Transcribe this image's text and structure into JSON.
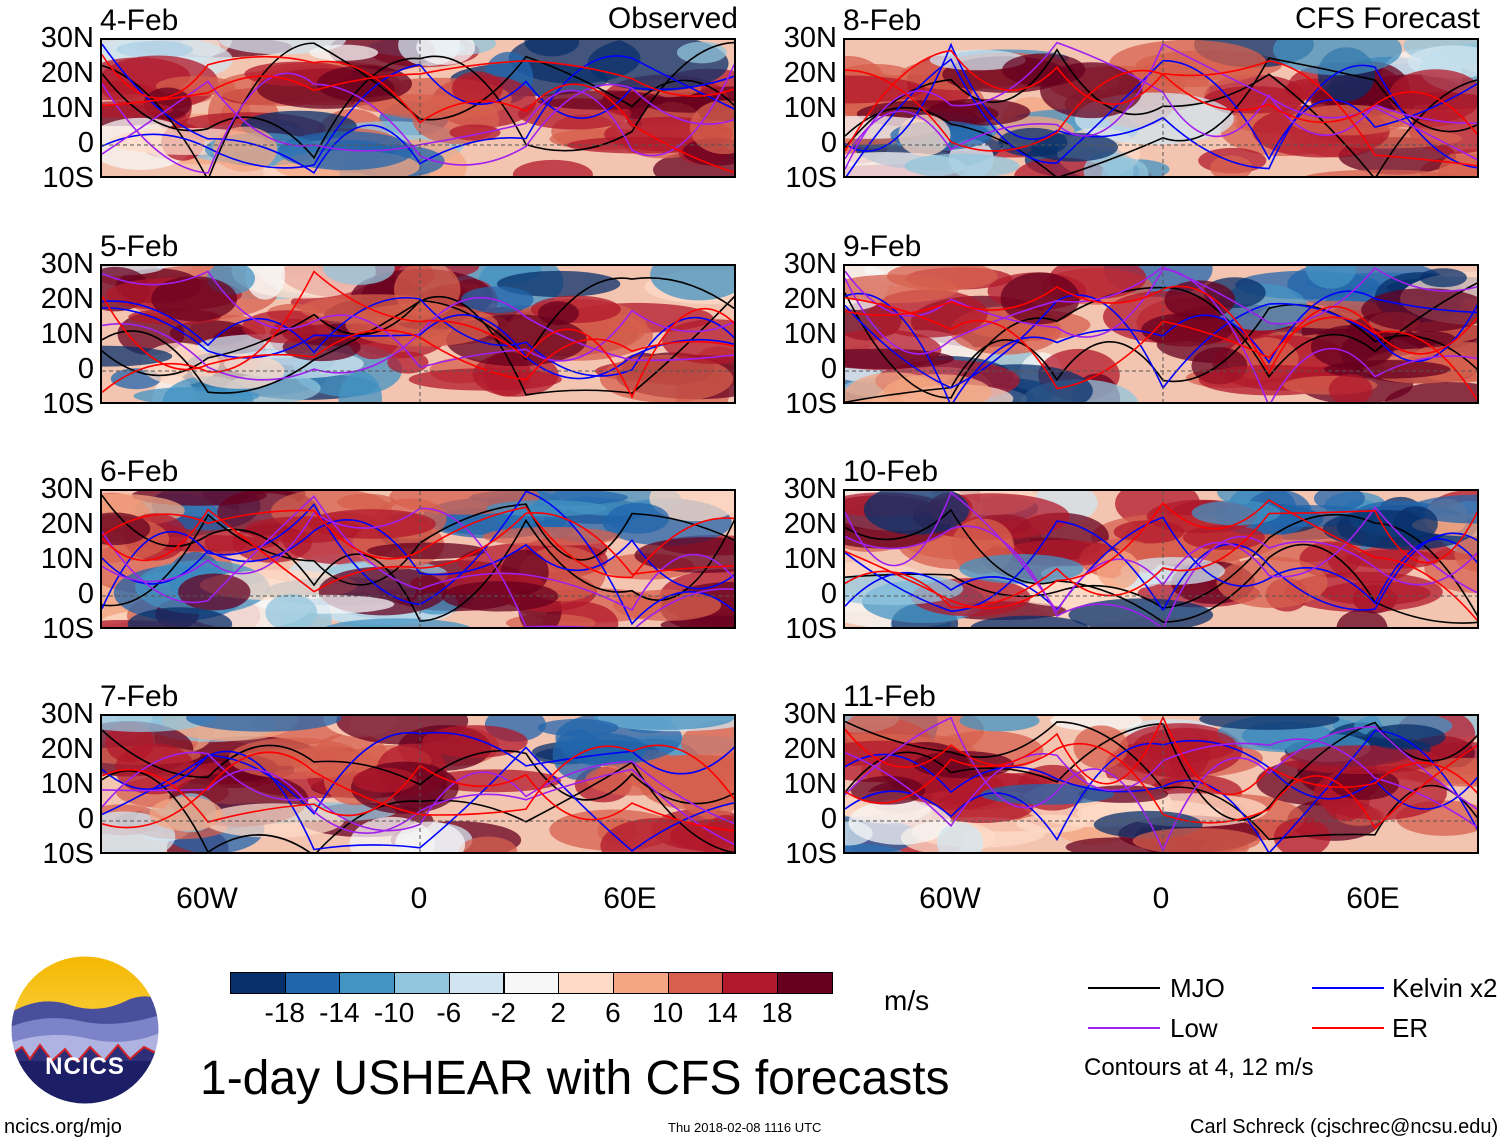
{
  "panels_left_title": "Observed",
  "panels_right_title": "CFS Forecast",
  "observed_dates": [
    "4-Feb",
    "5-Feb",
    "6-Feb",
    "7-Feb"
  ],
  "forecast_dates": [
    "8-Feb",
    "9-Feb",
    "10-Feb",
    "11-Feb"
  ],
  "lat_labels": [
    "30N",
    "20N",
    "10N",
    "0",
    "10S"
  ],
  "lon_labels": [
    "60W",
    "0",
    "60E"
  ],
  "colorbar": {
    "labels": [
      "-18",
      "-14",
      "-10",
      "-6",
      "-2",
      "2",
      "6",
      "10",
      "14",
      "18"
    ],
    "colors": [
      "#08306b",
      "#2166ac",
      "#4393c3",
      "#92c5de",
      "#d1e5f0",
      "#f7f7f7",
      "#fddbc7",
      "#f4a582",
      "#d6604d",
      "#b2182b",
      "#67001f"
    ],
    "units": "m/s"
  },
  "legend": {
    "items": [
      {
        "label": "MJO",
        "color": "#000000"
      },
      {
        "label": "Kelvin x2",
        "color": "#0000ff"
      },
      {
        "label": "Low",
        "color": "#a020f0"
      },
      {
        "label": "ER",
        "color": "#ff0000"
      }
    ],
    "note": "Contours at 4, 12 m/s"
  },
  "title": "1-day USHEAR with CFS forecasts",
  "logo_text": "NCICS",
  "footer": {
    "left": "ncics.org/mjo",
    "center": "Thu 2018-02-08 1116 UTC",
    "right": "Carl Schreck (cjschrec@ncsu.edu)"
  }
}
